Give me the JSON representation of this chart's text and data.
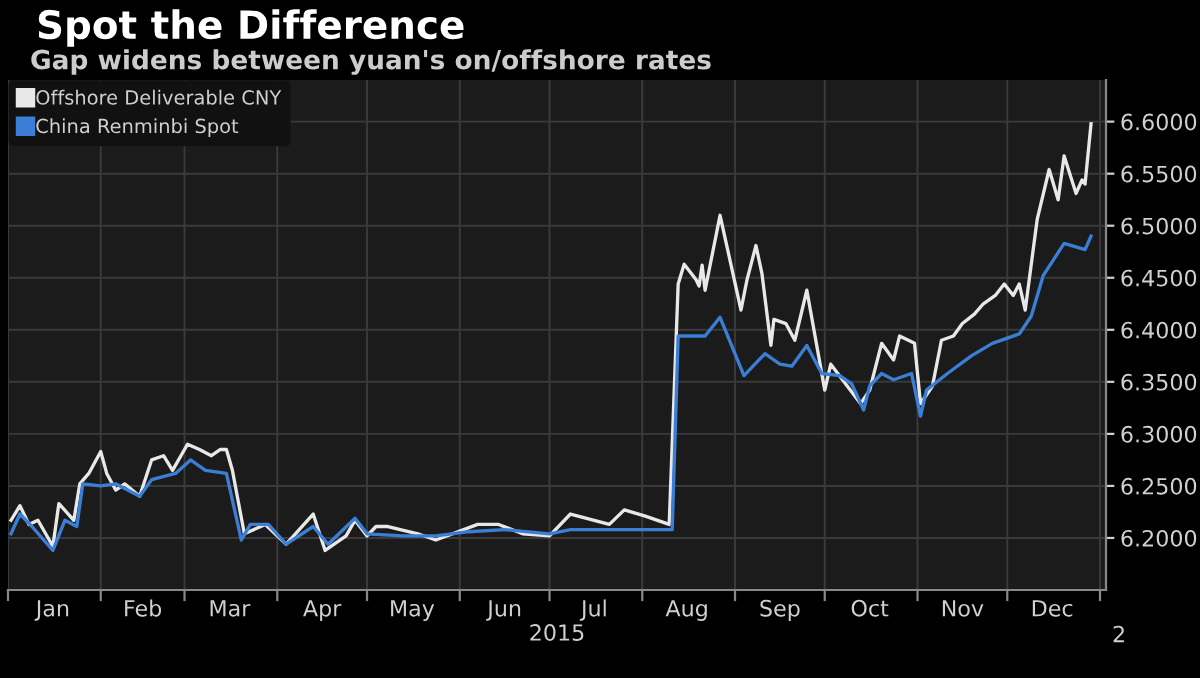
{
  "chart_data": {
    "type": "line",
    "title": "Spot the Difference",
    "subtitle": "Gap widens between yuan's on/offshore rates",
    "xlabel": "2015",
    "annotations": [
      "2"
    ],
    "series": [
      {
        "name": "Offshore Deliverable CNY",
        "color": "#e8e8e8",
        "x": [
          "2015-01-02",
          "2015-01-05",
          "2015-01-08",
          "2015-01-11",
          "2015-01-16",
          "2015-01-18",
          "2015-01-23",
          "2015-01-25",
          "2015-01-28",
          "2015-02-01",
          "2015-02-03",
          "2015-02-06",
          "2015-02-09",
          "2015-02-14",
          "2015-02-18",
          "2015-02-22",
          "2015-02-25",
          "2015-03-02",
          "2015-03-06",
          "2015-03-10",
          "2015-03-13",
          "2015-03-15",
          "2015-03-17",
          "2015-03-21",
          "2015-03-28",
          "2015-04-04",
          "2015-04-13",
          "2015-04-17",
          "2015-04-24",
          "2015-04-27",
          "2015-05-01",
          "2015-05-04",
          "2015-05-08",
          "2015-05-18",
          "2015-05-24",
          "2015-06-07",
          "2015-06-14",
          "2015-06-22",
          "2015-07-01",
          "2015-07-08",
          "2015-07-21",
          "2015-07-26",
          "2015-08-02",
          "2015-08-10",
          "2015-08-13",
          "2015-08-15",
          "2015-08-19",
          "2015-08-20",
          "2015-08-21",
          "2015-08-22",
          "2015-08-27",
          "2015-09-03",
          "2015-09-05",
          "2015-09-08",
          "2015-09-10",
          "2015-09-13",
          "2015-09-14",
          "2015-09-18",
          "2015-09-21",
          "2015-09-25",
          "2015-10-01",
          "2015-10-03",
          "2015-10-08",
          "2015-10-13",
          "2015-10-16",
          "2015-10-20",
          "2015-10-24",
          "2015-10-26",
          "2015-10-31",
          "2015-11-02",
          "2015-11-06",
          "2015-11-09",
          "2015-11-13",
          "2015-11-16",
          "2015-11-20",
          "2015-11-23",
          "2015-11-27",
          "2015-11-30",
          "2015-12-03",
          "2015-12-05",
          "2015-12-07",
          "2015-12-11",
          "2015-12-15",
          "2015-12-18",
          "2015-12-20",
          "2015-12-24",
          "2015-12-26",
          "2015-12-27",
          "2015-12-29"
        ],
        "values": [
          6.217,
          6.231,
          6.213,
          6.217,
          6.192,
          6.233,
          6.217,
          6.252,
          6.262,
          6.283,
          6.262,
          6.246,
          6.252,
          6.24,
          6.275,
          6.279,
          6.265,
          6.29,
          6.285,
          6.279,
          6.285,
          6.285,
          6.265,
          6.204,
          6.213,
          6.194,
          6.223,
          6.188,
          6.202,
          6.217,
          6.202,
          6.211,
          6.211,
          6.204,
          6.198,
          6.213,
          6.213,
          6.204,
          6.202,
          6.223,
          6.213,
          6.227,
          6.221,
          6.213,
          6.444,
          6.463,
          6.448,
          6.442,
          6.462,
          6.438,
          6.51,
          6.419,
          6.448,
          6.481,
          6.454,
          6.385,
          6.41,
          6.406,
          6.39,
          6.438,
          6.342,
          6.367,
          6.348,
          6.329,
          6.342,
          6.387,
          6.371,
          6.394,
          6.387,
          6.329,
          6.346,
          6.39,
          6.394,
          6.406,
          6.415,
          6.425,
          6.433,
          6.444,
          6.433,
          6.444,
          6.419,
          6.506,
          6.554,
          6.525,
          6.567,
          6.531,
          6.544,
          6.54,
          6.598
        ]
      },
      {
        "name": "China Renminbi Spot",
        "color": "#3a7fd5",
        "x": [
          "2015-01-02",
          "2015-01-05",
          "2015-01-09",
          "2015-01-16",
          "2015-01-20",
          "2015-01-24",
          "2015-01-26",
          "2015-02-01",
          "2015-02-06",
          "2015-02-14",
          "2015-02-18",
          "2015-02-26",
          "2015-03-03",
          "2015-03-08",
          "2015-03-15",
          "2015-03-20",
          "2015-03-23",
          "2015-03-29",
          "2015-04-04",
          "2015-04-13",
          "2015-04-18",
          "2015-04-27",
          "2015-05-01",
          "2015-05-13",
          "2015-05-24",
          "2015-06-04",
          "2015-06-16",
          "2015-07-01",
          "2015-07-08",
          "2015-08-02",
          "2015-08-11",
          "2015-08-13",
          "2015-08-22",
          "2015-08-27",
          "2015-09-04",
          "2015-09-11",
          "2015-09-16",
          "2015-09-20",
          "2015-09-25",
          "2015-09-30",
          "2015-10-06",
          "2015-10-10",
          "2015-10-14",
          "2015-10-16",
          "2015-10-20",
          "2015-10-24",
          "2015-10-30",
          "2015-11-02",
          "2015-11-04",
          "2015-11-11",
          "2015-11-19",
          "2015-11-26",
          "2015-12-05",
          "2015-12-09",
          "2015-12-13",
          "2015-12-20",
          "2015-12-27",
          "2015-12-29"
        ],
        "values": [
          6.204,
          6.223,
          6.211,
          6.188,
          6.217,
          6.211,
          6.252,
          6.25,
          6.252,
          6.24,
          6.256,
          6.262,
          6.275,
          6.265,
          6.262,
          6.198,
          6.213,
          6.213,
          6.194,
          6.211,
          6.194,
          6.219,
          6.204,
          6.202,
          6.202,
          6.206,
          6.208,
          6.204,
          6.208,
          6.208,
          6.208,
          6.394,
          6.394,
          6.412,
          6.356,
          6.377,
          6.367,
          6.365,
          6.385,
          6.358,
          6.356,
          6.348,
          6.323,
          6.346,
          6.358,
          6.352,
          6.358,
          6.317,
          6.342,
          6.358,
          6.375,
          6.387,
          6.396,
          6.413,
          6.452,
          6.483,
          6.477,
          6.49
        ]
      }
    ],
    "xlim": [
      "2015-01-01",
      "2016-01-03"
    ],
    "xticks": [
      {
        "value": "2015-01-01",
        "label": null
      },
      {
        "value": "2015-02-01",
        "label": null
      },
      {
        "value": "2015-03-01",
        "label": null
      },
      {
        "value": "2015-04-01",
        "label": null
      },
      {
        "value": "2015-05-01",
        "label": null
      },
      {
        "value": "2015-06-01",
        "label": null
      },
      {
        "value": "2015-07-01",
        "label": null
      },
      {
        "value": "2015-08-01",
        "label": null
      },
      {
        "value": "2015-09-01",
        "label": null
      },
      {
        "value": "2015-10-01",
        "label": null
      },
      {
        "value": "2015-11-01",
        "label": null
      },
      {
        "value": "2015-12-01",
        "label": null
      },
      {
        "value": "2016-01-01",
        "label": null
      },
      {
        "value": "2015-01-16",
        "label": "Jan"
      },
      {
        "value": "2015-02-15",
        "label": "Feb"
      },
      {
        "value": "2015-03-16",
        "label": "Mar"
      },
      {
        "value": "2015-04-16",
        "label": "Apr"
      },
      {
        "value": "2015-05-16",
        "label": "May"
      },
      {
        "value": "2015-06-16",
        "label": "Jun"
      },
      {
        "value": "2015-07-16",
        "label": "Jul"
      },
      {
        "value": "2015-08-16",
        "label": "Aug"
      },
      {
        "value": "2015-09-16",
        "label": "Sep"
      },
      {
        "value": "2015-10-16",
        "label": "Oct"
      },
      {
        "value": "2015-11-16",
        "label": "Nov"
      },
      {
        "value": "2015-12-16",
        "label": "Dec"
      }
    ],
    "ylim": [
      6.15,
      6.64
    ],
    "yticks": [
      {
        "value": 6.2,
        "label": "6.2000"
      },
      {
        "value": 6.25,
        "label": "6.2500"
      },
      {
        "value": 6.3,
        "label": "6.3000"
      },
      {
        "value": 6.35,
        "label": "6.3500"
      },
      {
        "value": 6.4,
        "label": "6.4000"
      },
      {
        "value": 6.45,
        "label": "6.4500"
      },
      {
        "value": 6.5,
        "label": "6.5000"
      },
      {
        "value": 6.55,
        "label": "6.5500"
      },
      {
        "value": 6.6,
        "label": "6.6000"
      }
    ],
    "grid": true,
    "legend": "top left",
    "marker": "none",
    "line_style": "solid"
  }
}
